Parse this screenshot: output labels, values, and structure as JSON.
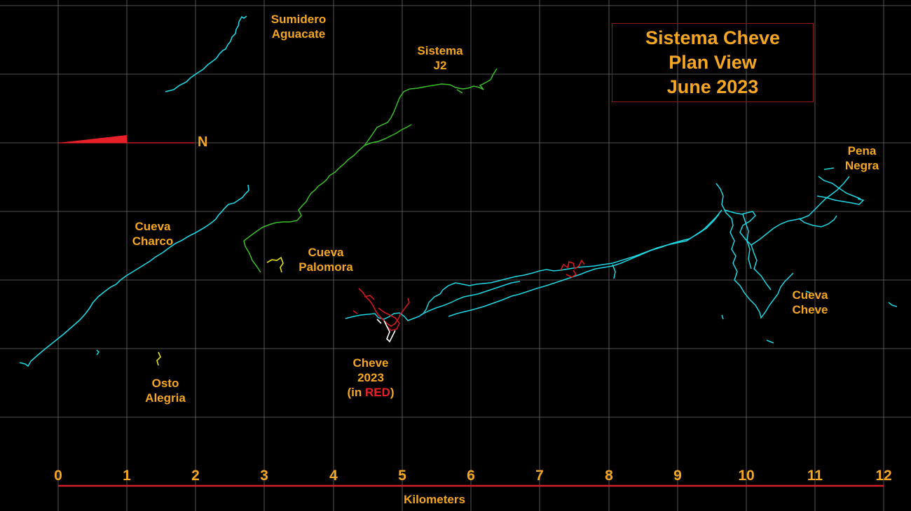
{
  "title": {
    "line1": "Sistema Cheve",
    "line2": "Plan View",
    "line3": "June 2023"
  },
  "north_label": "N",
  "scale_bar": {
    "ticks": [
      "0",
      "1",
      "2",
      "3",
      "4",
      "5",
      "6",
      "7",
      "8",
      "9",
      "10",
      "11",
      "12"
    ],
    "unit_label": "Kilometers"
  },
  "features": {
    "sumidero_aguacate": {
      "line1": "Sumidero",
      "line2": "Aguacate"
    },
    "sistema_j2": {
      "line1": "Sistema",
      "line2": "J2"
    },
    "cueva_charco": {
      "line1": "Cueva",
      "line2": "Charco"
    },
    "cueva_palomora": {
      "line1": "Cueva",
      "line2": "Palomora"
    },
    "osto_alegria": {
      "line1": "Osto",
      "line2": "Alegria"
    },
    "cheve_2023": {
      "line1": "Cheve",
      "line2": "2023",
      "line3_prefix": "(in ",
      "line3_red": "RED",
      "line3_suffix": ")"
    },
    "cueva_cheve": {
      "line1": "Cueva",
      "line2": "Cheve"
    },
    "pena_negra": {
      "line1": "Pena",
      "line2": "Negra"
    }
  },
  "colors": {
    "background": "#000000",
    "grid": "#6a6a6a",
    "label": "#f5a623",
    "scale_bar": "#d21f2a",
    "north_arrow": "#e8202a",
    "title_border": "#8b1a1a",
    "survey_main": "#1fd6e0",
    "survey_j2": "#3cbf2a",
    "survey_2023": "#d0181f",
    "survey_palomora": "#e6e01a",
    "survey_white": "#ffffff"
  }
}
